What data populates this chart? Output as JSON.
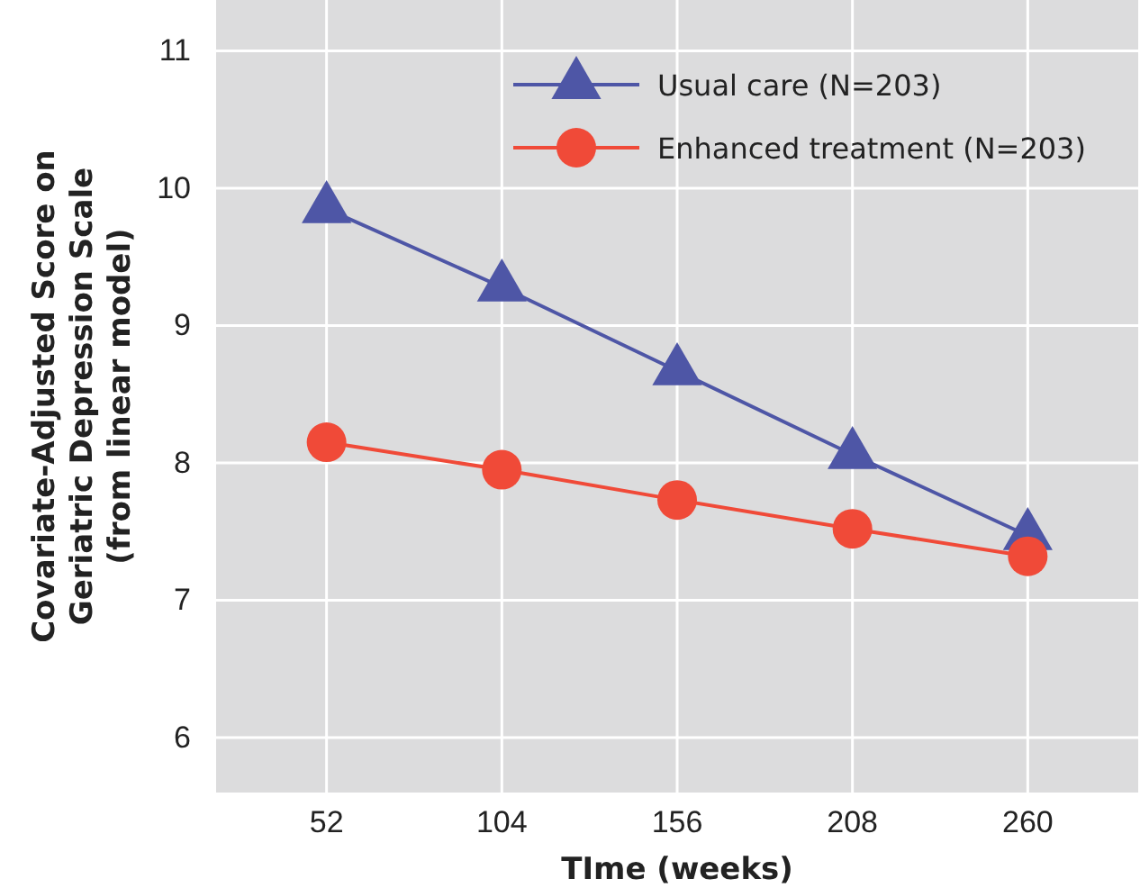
{
  "chart_data": {
    "type": "line",
    "xlabel": "TIme (weeks)",
    "ylabel": "Covariate-Adjusted Score on\nGeriatric Depression Scale\n(from linear model)",
    "categories": [
      "52",
      "104",
      "156",
      "208",
      "260"
    ],
    "series": [
      {
        "name": "Usual care (N=203)",
        "color": "#4e56a6",
        "marker": "triangle",
        "values": [
          9.85,
          9.28,
          8.67,
          8.06,
          7.47
        ]
      },
      {
        "name": "Enhanced treatment (N=203)",
        "color": "#f04a38",
        "marker": "circle",
        "values": [
          8.15,
          7.95,
          7.73,
          7.52,
          7.32
        ]
      }
    ],
    "ylim": [
      5.6,
      11.37
    ],
    "yticks": [
      6,
      7,
      8,
      9,
      10,
      11
    ],
    "grid": true,
    "legend": "top right"
  }
}
